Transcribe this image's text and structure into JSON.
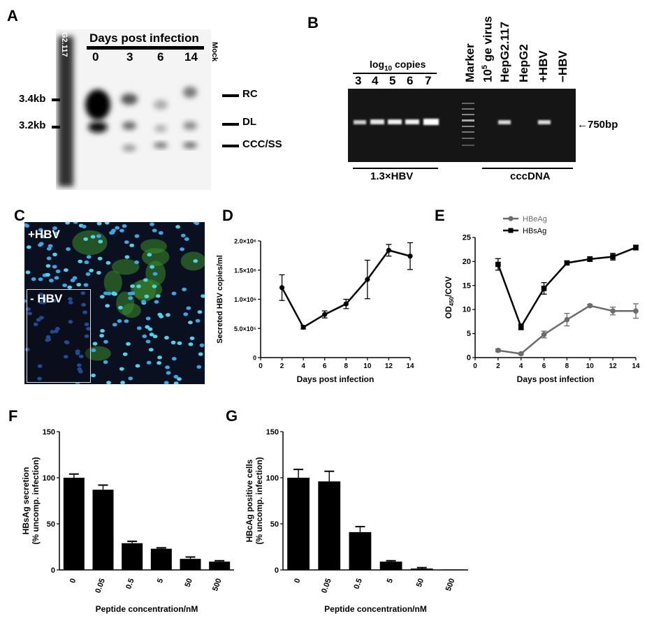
{
  "panels": {
    "A": {
      "letter": "A",
      "header": "Days post infection",
      "lanes": [
        "G2.117",
        "0",
        "3",
        "6",
        "14",
        "Mock"
      ],
      "size_markers": [
        "3.4kb",
        "3.2kb"
      ],
      "band_labels": [
        "RC",
        "DL",
        "CCC/SS"
      ]
    },
    "B": {
      "letter": "B",
      "log_label_base": "log",
      "log_label_sub": "10",
      "log_label_rest": " copies",
      "std_lanes": [
        "3",
        "4",
        "5",
        "6",
        "7"
      ],
      "rot_lanes": [
        "Marker",
        "10",
        "HepG2.117",
        "HepG2",
        "+HBV",
        "−HBV"
      ],
      "ge_sup": "5",
      "ge_rest": " ge virus",
      "size": "←750bp",
      "group_left": "1.3×HBV",
      "group_right": "cccDNA"
    },
    "C": {
      "letter": "C",
      "label_plus": "+HBV",
      "label_minus": "- HBV"
    },
    "F": {
      "letter": "F"
    },
    "G": {
      "letter": "G"
    },
    "D": {
      "letter": "D"
    },
    "E": {
      "letter": "E"
    }
  },
  "chart_data": [
    {
      "id": "D",
      "type": "line",
      "xlabel": "Days post infection",
      "ylabel": "Secreted HBV copies/ml",
      "xlim": [
        0,
        14
      ],
      "ylim": [
        0,
        2000000
      ],
      "xticks": [
        "0",
        "2",
        "4",
        "6",
        "8",
        "10",
        "12",
        "14"
      ],
      "yticks": [
        "0",
        "5.0×10⁵",
        "1.0×10⁶",
        "1.5×10⁶",
        "2.0×10⁶"
      ],
      "ytick_values": [
        0,
        500000,
        1000000,
        1500000,
        2000000
      ],
      "color": "#000000",
      "series": [
        {
          "x": [
            2,
            4,
            6,
            8,
            10,
            12,
            14
          ],
          "values": [
            1200000,
            520000,
            740000,
            920000,
            1340000,
            1840000,
            1740000
          ],
          "errors": [
            220000,
            30000,
            60000,
            80000,
            330000,
            100000,
            230000
          ]
        }
      ]
    },
    {
      "id": "E",
      "type": "line",
      "xlabel": "Days post infection",
      "ylabel_base": "OD",
      "ylabel_sub": "450",
      "ylabel_rest": "/COV",
      "xlim": [
        0,
        14
      ],
      "ylim": [
        0,
        25
      ],
      "xticks": [
        "0",
        "2",
        "4",
        "6",
        "8",
        "10",
        "12",
        "14"
      ],
      "yticks": [
        "0",
        "5",
        "10",
        "15",
        "20",
        "25"
      ],
      "ytick_values": [
        0,
        5,
        10,
        15,
        20,
        25
      ],
      "legend_position": "top",
      "series": [
        {
          "name": "HBeAg",
          "color": "#6b6b6b",
          "marker": "circle",
          "x": [
            2,
            4,
            6,
            8,
            10,
            12,
            14
          ],
          "values": [
            1.5,
            0.8,
            4.8,
            7.9,
            10.8,
            9.7,
            9.7
          ],
          "errors": [
            0.3,
            0.2,
            0.7,
            1.3,
            0.3,
            0.8,
            1.5
          ]
        },
        {
          "name": "HBsAg",
          "color": "#000000",
          "marker": "square",
          "x": [
            2,
            4,
            6,
            8,
            10,
            12,
            14
          ],
          "values": [
            19.4,
            6.4,
            14.4,
            19.7,
            20.5,
            21.0,
            22.9
          ],
          "errors": [
            1.2,
            0.6,
            1.2,
            0.4,
            0.5,
            0.7,
            0.5
          ]
        }
      ]
    },
    {
      "id": "F",
      "type": "bar",
      "xlabel": "Peptide concentration/nM",
      "ylabel_line1": "HBsAg secretion",
      "ylabel_line2": "(% uncomp. infection)",
      "categories": [
        "0",
        "0.05",
        "0.5",
        "5",
        "50",
        "500"
      ],
      "values": [
        100,
        87,
        29,
        23,
        12,
        9
      ],
      "errors": [
        4,
        5,
        2,
        1,
        2,
        1
      ],
      "ylim": [
        0,
        150
      ],
      "yticks": [
        "0",
        "50",
        "100",
        "150"
      ],
      "ytick_values": [
        0,
        50,
        100,
        150
      ],
      "color": "#000000"
    },
    {
      "id": "G",
      "type": "bar",
      "xlabel": "Peptide concentration/nM",
      "ylabel_line1": "HBcAg positive cells",
      "ylabel_line2": "(% uncomp. infection)",
      "categories": [
        "0",
        "0.05",
        "0.5",
        "5",
        "50",
        "500"
      ],
      "values": [
        100,
        96,
        41,
        9,
        1.5,
        0.5
      ],
      "errors": [
        9,
        11,
        6,
        1,
        1,
        0
      ],
      "ylim": [
        0,
        150
      ],
      "yticks": [
        "0",
        "50",
        "100",
        "150"
      ],
      "ytick_values": [
        0,
        50,
        100,
        150
      ],
      "color": "#000000"
    }
  ]
}
